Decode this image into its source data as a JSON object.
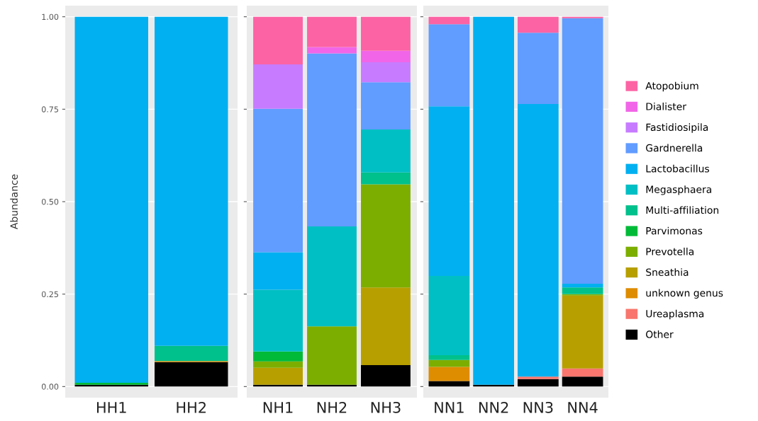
{
  "chart_data": [
    {
      "type": "bar",
      "stacked": true,
      "categories": [
        "HH1",
        "HH2"
      ],
      "ylabel": "Abundance",
      "ylim": [
        -0.03,
        1.03
      ],
      "yticks": [
        {
          "value": 0,
          "label": "0.00"
        },
        {
          "value": 0.25,
          "label": "0.25"
        },
        {
          "value": 0.5,
          "label": "0.50"
        },
        {
          "value": 0.75,
          "label": "0.75"
        },
        {
          "value": 1,
          "label": "1.00"
        }
      ],
      "grid": "y",
      "legend": "right",
      "series": [
        {
          "name": "Other",
          "color": "#000000",
          "values": [
            0.005,
            0.066
          ]
        },
        {
          "name": "Ureaplasma",
          "color": "#f8766d",
          "values": [
            null,
            null
          ]
        },
        {
          "name": "unknown genus",
          "color": "#de8c00",
          "values": [
            null,
            0.003
          ]
        },
        {
          "name": "Sneathia",
          "color": "#b79f00",
          "values": [
            null,
            null
          ]
        },
        {
          "name": "Prevotella",
          "color": "#7cae00",
          "values": [
            null,
            null
          ]
        },
        {
          "name": "Parvimonas",
          "color": "#00ba38",
          "values": [
            0.005,
            null
          ]
        },
        {
          "name": "Multi-affiliation",
          "color": "#00c08b",
          "values": [
            null,
            0.041
          ]
        },
        {
          "name": "Megasphaera",
          "color": "#00bfc4",
          "values": [
            null,
            null
          ]
        },
        {
          "name": "Lactobacillus",
          "color": "#00b0f0",
          "values": [
            0.99,
            0.89
          ]
        },
        {
          "name": "Gardnerella",
          "color": "#619cff",
          "values": [
            null,
            null
          ]
        },
        {
          "name": "Fastidiosipila",
          "color": "#c77cff",
          "values": [
            null,
            null
          ]
        },
        {
          "name": "Dialister",
          "color": "#f166e8",
          "values": [
            null,
            null
          ]
        },
        {
          "name": "Atopobium",
          "color": "#fc63a4",
          "values": [
            null,
            null
          ]
        }
      ]
    },
    {
      "type": "bar",
      "stacked": true,
      "categories": [
        "NH1",
        "NH2",
        "NH3"
      ],
      "ylim": [
        -0.03,
        1.03
      ],
      "yticks": [
        0,
        0.25,
        0.5,
        0.75,
        1
      ],
      "grid": "y",
      "tick_labels": "x",
      "series": [
        {
          "color": "#000000",
          "values": [
            0.005,
            0.005,
            0.058
          ]
        },
        {
          "color": "#f8766d",
          "values": [
            null,
            null,
            null
          ]
        },
        {
          "color": "#de8c00",
          "values": [
            null,
            null,
            null
          ]
        },
        {
          "color": "#b79f00",
          "values": [
            0.046,
            null,
            0.21
          ]
        },
        {
          "color": "#7cae00",
          "values": [
            0.017,
            0.158,
            0.279
          ]
        },
        {
          "color": "#00ba38",
          "values": [
            0.027,
            null,
            null
          ]
        },
        {
          "color": "#00c08b",
          "values": [
            null,
            null,
            0.032
          ]
        },
        {
          "color": "#00bfc4",
          "values": [
            0.167,
            0.27,
            0.116
          ]
        },
        {
          "color": "#00b0f0",
          "values": [
            0.101,
            null,
            null
          ]
        },
        {
          "color": "#619cff",
          "values": [
            0.388,
            0.468,
            0.128
          ]
        },
        {
          "color": "#c77cff",
          "values": [
            0.12,
            null,
            0.054
          ]
        },
        {
          "color": "#f166e8",
          "values": [
            null,
            0.017,
            0.031
          ]
        },
        {
          "color": "#fc63a4",
          "values": [
            0.129,
            0.082,
            0.092
          ]
        }
      ]
    },
    {
      "type": "bar",
      "stacked": true,
      "categories": [
        "NN1",
        "NN2",
        "NN3",
        "NN4"
      ],
      "ylim": [
        -0.03,
        1.03
      ],
      "yticks": [
        0,
        0.25,
        0.5,
        0.75,
        1
      ],
      "grid": "y",
      "tick_labels": "x",
      "series": [
        {
          "color": "#000000",
          "values": [
            0.015,
            0.005,
            0.02,
            0.027
          ]
        },
        {
          "color": "#f8766d",
          "values": [
            null,
            null,
            0.007,
            0.022
          ]
        },
        {
          "color": "#de8c00",
          "values": [
            0.038,
            null,
            null,
            null
          ]
        },
        {
          "color": "#b79f00",
          "values": [
            null,
            null,
            null,
            0.197
          ]
        },
        {
          "color": "#7cae00",
          "values": [
            0.019,
            null,
            null,
            0.004
          ]
        },
        {
          "color": "#00ba38",
          "values": [
            null,
            null,
            null,
            null
          ]
        },
        {
          "color": "#00c08b",
          "values": [
            0.013,
            null,
            null,
            0.018
          ]
        },
        {
          "color": "#00bfc4",
          "values": [
            0.214,
            null,
            null,
            null
          ]
        },
        {
          "color": "#00b0f0",
          "values": [
            0.459,
            0.995,
            0.737,
            0.01
          ]
        },
        {
          "color": "#619cff",
          "values": [
            0.222,
            null,
            0.193,
            0.718
          ]
        },
        {
          "color": "#c77cff",
          "values": [
            null,
            null,
            null,
            null
          ]
        },
        {
          "color": "#f166e8",
          "values": [
            null,
            null,
            null,
            null
          ]
        },
        {
          "color": "#fc63a4",
          "values": [
            0.02,
            null,
            0.043,
            0.004
          ]
        }
      ]
    }
  ]
}
